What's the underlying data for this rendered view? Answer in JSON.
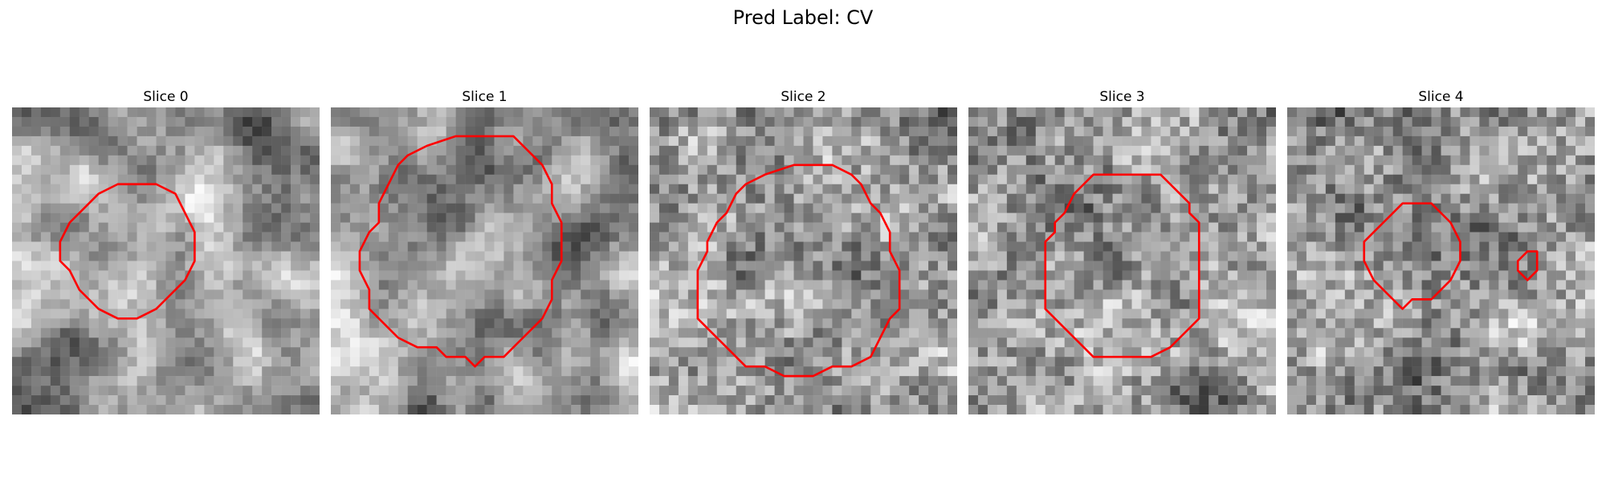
{
  "figure": {
    "title": "Pred Label: CV"
  },
  "slices": [
    {
      "title": "Slice 0",
      "seed": 11,
      "contrast": "smooth"
    },
    {
      "title": "Slice 1",
      "seed": 23,
      "contrast": "smooth"
    },
    {
      "title": "Slice 2",
      "seed": 37,
      "contrast": "noisy"
    },
    {
      "title": "Slice 3",
      "seed": 51,
      "contrast": "noisy"
    },
    {
      "title": "Slice 4",
      "seed": 67,
      "contrast": "noisy"
    }
  ],
  "colors": {
    "contour": "#ff0000",
    "background": "#ffffff"
  },
  "image_style": "grayscale 32x32 pixel patch with red segmentation contour"
}
